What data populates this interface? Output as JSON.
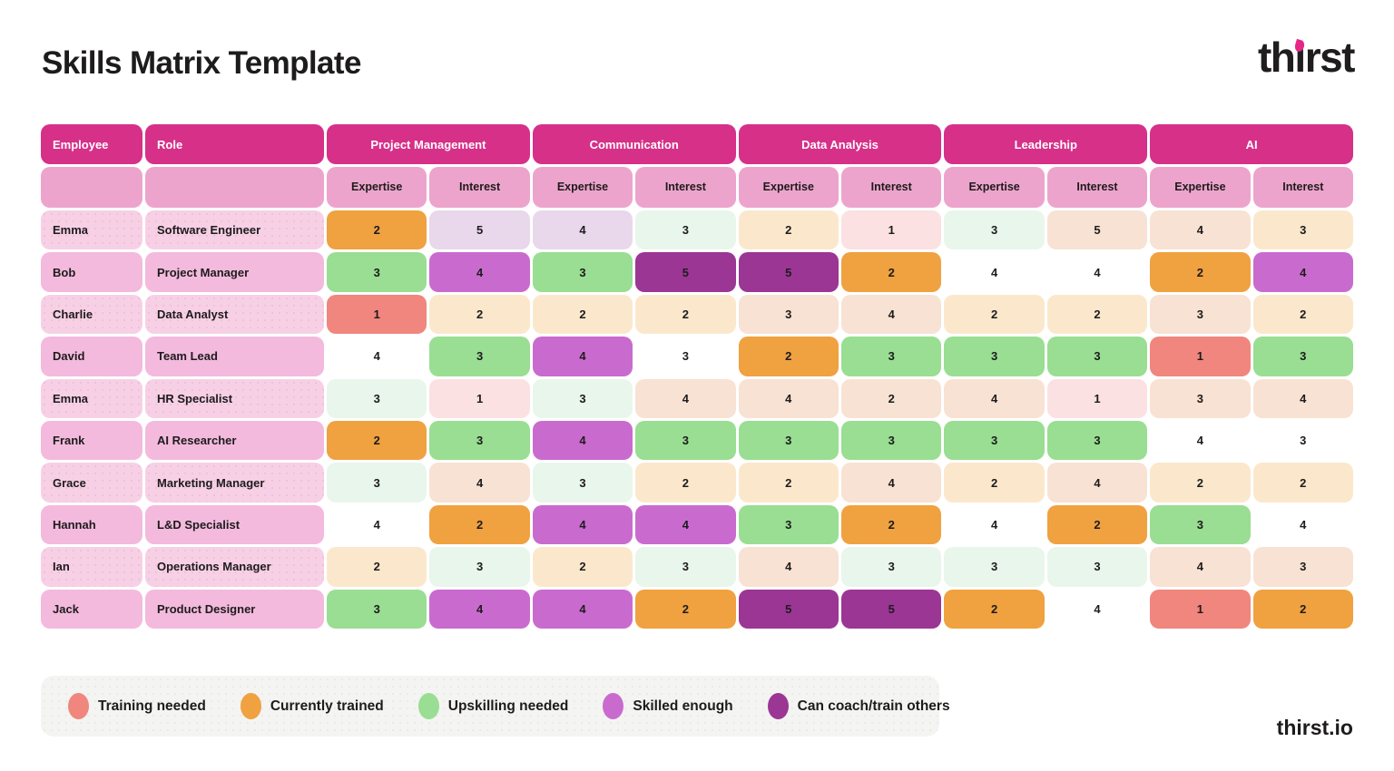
{
  "header": {
    "title": "Skills Matrix Template",
    "brand": "thirst"
  },
  "footer": {
    "brand": "thirst.io"
  },
  "colors": {
    "ink": "#1d1b1c",
    "brandPink": "#E52787",
    "headerMagenta": "#D63089",
    "subheaderPink": "#EDA4CC",
    "rowLight": "#F7D0E5",
    "rowMedium": "#F3BADD",
    "legendBg": "#F4F4F2",
    "cellTints": {
      "salmon": "#F0867E",
      "orange": "#F0A140",
      "green": "#99DE92",
      "orchid": "#C96BCE",
      "purple": "#9B3694",
      "paleOrange": "#FBE8CC",
      "palePeach": "#F8E2D3",
      "paleMint": "#E9F6EB",
      "palePink": "#FBE1E2",
      "paleLavender": "#E9D7EC",
      "white": "#FFFFFF"
    },
    "dottedTokens": [
      "palePeach",
      "paleMint",
      "palePink",
      "paleLavender"
    ]
  },
  "table": {
    "columns": {
      "employee": "Employee",
      "role": "Role"
    },
    "categories": [
      "Project Management",
      "Communication",
      "Data Analysis",
      "Leadership",
      "AI"
    ],
    "subcolumns": [
      "Expertise",
      "Interest"
    ]
  },
  "legend": {
    "items": [
      {
        "label": "Training needed",
        "token": "salmon"
      },
      {
        "label": "Currently trained",
        "token": "orange"
      },
      {
        "label": "Upskilling needed",
        "token": "green"
      },
      {
        "label": "Skilled enough",
        "token": "orchid"
      },
      {
        "label": "Can coach/train others",
        "token": "purple"
      }
    ]
  },
  "chart_data": {
    "type": "table",
    "title": "Skills Matrix Template",
    "cell_order": [
      "Project Management Expertise",
      "Project Management Interest",
      "Communication Expertise",
      "Communication Interest",
      "Data Analysis Expertise",
      "Data Analysis Interest",
      "Leadership Expertise",
      "Leadership Interest",
      "AI Expertise",
      "AI Interest"
    ],
    "status_by_color": {
      "salmon": "Training needed",
      "orange": "Currently trained",
      "green": "Upskilling needed",
      "orchid": "Skilled enough",
      "purple": "Can coach/train others"
    },
    "rows": [
      {
        "employee": "Emma",
        "role": "Software Engineer",
        "cells": [
          {
            "v": 2,
            "c": "orange"
          },
          {
            "v": 5,
            "c": "paleLavender"
          },
          {
            "v": 4,
            "c": "paleLavender"
          },
          {
            "v": 3,
            "c": "paleMint"
          },
          {
            "v": 2,
            "c": "paleOrange"
          },
          {
            "v": 1,
            "c": "palePink"
          },
          {
            "v": 3,
            "c": "paleMint"
          },
          {
            "v": 5,
            "c": "palePeach"
          },
          {
            "v": 4,
            "c": "palePeach"
          },
          {
            "v": 3,
            "c": "paleOrange"
          }
        ]
      },
      {
        "employee": "Bob",
        "role": "Project Manager",
        "cells": [
          {
            "v": 3,
            "c": "green"
          },
          {
            "v": 4,
            "c": "orchid"
          },
          {
            "v": 3,
            "c": "green"
          },
          {
            "v": 5,
            "c": "purple"
          },
          {
            "v": 5,
            "c": "purple"
          },
          {
            "v": 2,
            "c": "orange"
          },
          {
            "v": 4,
            "c": "white"
          },
          {
            "v": 4,
            "c": "white"
          },
          {
            "v": 2,
            "c": "orange"
          },
          {
            "v": 4,
            "c": "orchid"
          }
        ]
      },
      {
        "employee": "Charlie",
        "role": "Data Analyst",
        "cells": [
          {
            "v": 1,
            "c": "salmon"
          },
          {
            "v": 2,
            "c": "paleOrange"
          },
          {
            "v": 2,
            "c": "paleOrange"
          },
          {
            "v": 2,
            "c": "paleOrange"
          },
          {
            "v": 3,
            "c": "palePeach"
          },
          {
            "v": 4,
            "c": "palePeach"
          },
          {
            "v": 2,
            "c": "paleOrange"
          },
          {
            "v": 2,
            "c": "paleOrange"
          },
          {
            "v": 3,
            "c": "palePeach"
          },
          {
            "v": 2,
            "c": "paleOrange"
          }
        ]
      },
      {
        "employee": "David",
        "role": "Team Lead",
        "cells": [
          {
            "v": 4,
            "c": "white"
          },
          {
            "v": 3,
            "c": "green"
          },
          {
            "v": 4,
            "c": "orchid"
          },
          {
            "v": 3,
            "c": "white"
          },
          {
            "v": 2,
            "c": "orange"
          },
          {
            "v": 3,
            "c": "green"
          },
          {
            "v": 3,
            "c": "green"
          },
          {
            "v": 3,
            "c": "green"
          },
          {
            "v": 1,
            "c": "salmon"
          },
          {
            "v": 3,
            "c": "green"
          }
        ]
      },
      {
        "employee": "Emma",
        "role": "HR Specialist",
        "cells": [
          {
            "v": 3,
            "c": "paleMint"
          },
          {
            "v": 1,
            "c": "palePink"
          },
          {
            "v": 3,
            "c": "paleMint"
          },
          {
            "v": 4,
            "c": "palePeach"
          },
          {
            "v": 4,
            "c": "palePeach"
          },
          {
            "v": 2,
            "c": "palePeach"
          },
          {
            "v": 4,
            "c": "palePeach"
          },
          {
            "v": 1,
            "c": "palePink"
          },
          {
            "v": 3,
            "c": "palePeach"
          },
          {
            "v": 4,
            "c": "palePeach"
          }
        ]
      },
      {
        "employee": "Frank",
        "role": "AI Researcher",
        "cells": [
          {
            "v": 2,
            "c": "orange"
          },
          {
            "v": 3,
            "c": "green"
          },
          {
            "v": 4,
            "c": "orchid"
          },
          {
            "v": 3,
            "c": "green"
          },
          {
            "v": 3,
            "c": "green"
          },
          {
            "v": 3,
            "c": "green"
          },
          {
            "v": 3,
            "c": "green"
          },
          {
            "v": 3,
            "c": "green"
          },
          {
            "v": 4,
            "c": "white"
          },
          {
            "v": 3,
            "c": "white"
          }
        ]
      },
      {
        "employee": "Grace",
        "role": "Marketing Manager",
        "cells": [
          {
            "v": 3,
            "c": "paleMint"
          },
          {
            "v": 4,
            "c": "palePeach"
          },
          {
            "v": 3,
            "c": "paleMint"
          },
          {
            "v": 2,
            "c": "paleOrange"
          },
          {
            "v": 2,
            "c": "paleOrange"
          },
          {
            "v": 4,
            "c": "palePeach"
          },
          {
            "v": 2,
            "c": "paleOrange"
          },
          {
            "v": 4,
            "c": "palePeach"
          },
          {
            "v": 2,
            "c": "paleOrange"
          },
          {
            "v": 2,
            "c": "paleOrange"
          }
        ]
      },
      {
        "employee": "Hannah",
        "role": "L&D Specialist",
        "cells": [
          {
            "v": 4,
            "c": "white"
          },
          {
            "v": 2,
            "c": "orange"
          },
          {
            "v": 4,
            "c": "orchid"
          },
          {
            "v": 4,
            "c": "orchid"
          },
          {
            "v": 3,
            "c": "green"
          },
          {
            "v": 2,
            "c": "orange"
          },
          {
            "v": 4,
            "c": "white"
          },
          {
            "v": 2,
            "c": "orange"
          },
          {
            "v": 3,
            "c": "green"
          },
          {
            "v": 4,
            "c": "white"
          }
        ]
      },
      {
        "employee": "Ian",
        "role": "Operations Manager",
        "cells": [
          {
            "v": 2,
            "c": "paleOrange"
          },
          {
            "v": 3,
            "c": "paleMint"
          },
          {
            "v": 2,
            "c": "paleOrange"
          },
          {
            "v": 3,
            "c": "paleMint"
          },
          {
            "v": 4,
            "c": "palePeach"
          },
          {
            "v": 3,
            "c": "paleMint"
          },
          {
            "v": 3,
            "c": "paleMint"
          },
          {
            "v": 3,
            "c": "paleMint"
          },
          {
            "v": 4,
            "c": "palePeach"
          },
          {
            "v": 3,
            "c": "palePeach"
          }
        ]
      },
      {
        "employee": "Jack",
        "role": "Product Designer",
        "cells": [
          {
            "v": 3,
            "c": "green"
          },
          {
            "v": 4,
            "c": "orchid"
          },
          {
            "v": 4,
            "c": "orchid"
          },
          {
            "v": 2,
            "c": "orange"
          },
          {
            "v": 5,
            "c": "purple"
          },
          {
            "v": 5,
            "c": "purple"
          },
          {
            "v": 2,
            "c": "orange"
          },
          {
            "v": 4,
            "c": "white"
          },
          {
            "v": 1,
            "c": "salmon"
          },
          {
            "v": 2,
            "c": "orange"
          }
        ]
      }
    ]
  }
}
